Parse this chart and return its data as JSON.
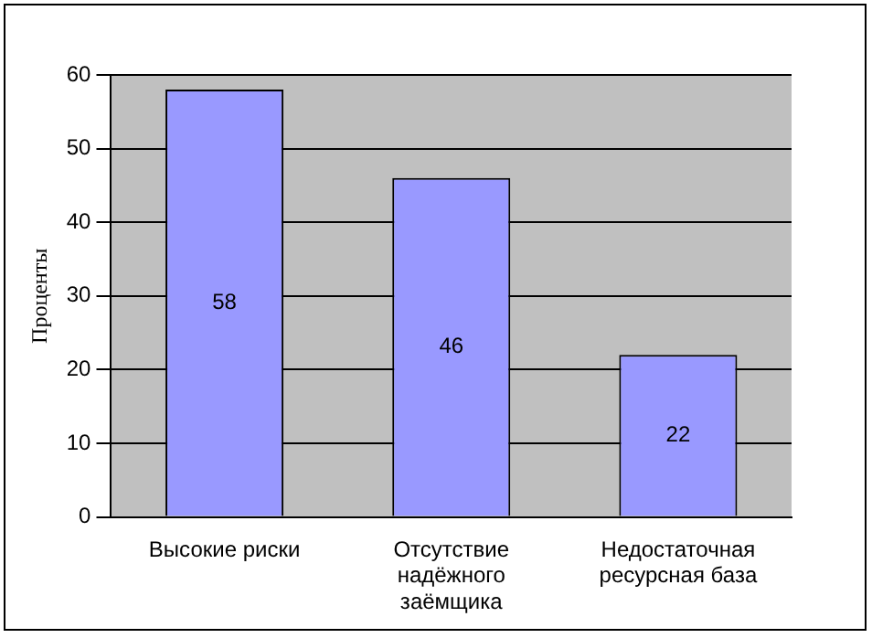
{
  "chart_data": {
    "type": "bar",
    "ylabel": "Проценты",
    "categories": [
      "Высокие риски",
      "Отсутствие надёжного заёмщика",
      "Недостаточная ресурсная база"
    ],
    "values": [
      58,
      46,
      22
    ],
    "color": "#9999ff",
    "ylim": [
      0,
      60
    ],
    "yticks": [
      0,
      10,
      20,
      30,
      40,
      50,
      60
    ],
    "grid": "y",
    "legend": false,
    "data_labels": true
  }
}
